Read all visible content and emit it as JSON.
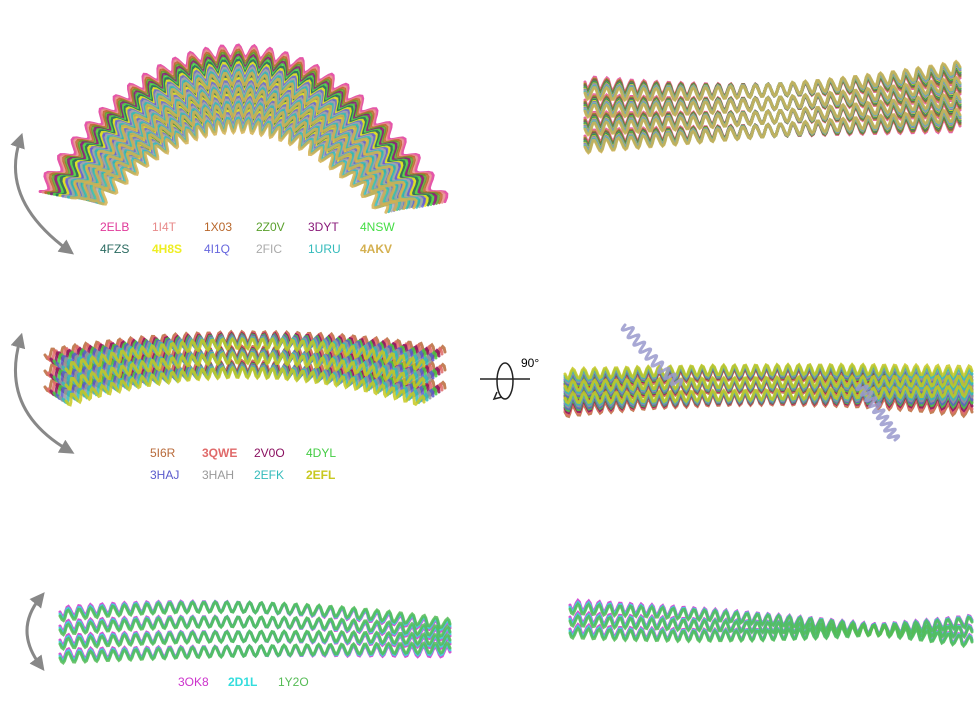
{
  "rotation_label": "90°",
  "panels": [
    {
      "labels": [
        {
          "text": "2ELB",
          "color": "#e0389a"
        },
        {
          "text": "1I4T",
          "color": "#e88a8a"
        },
        {
          "text": "1X03",
          "color": "#b8662a"
        },
        {
          "text": "2Z0V",
          "color": "#5aa02c"
        },
        {
          "text": "3DYT",
          "color": "#8a1a7a"
        },
        {
          "text": "4NSW",
          "color": "#44dd44"
        },
        {
          "text": "4FZS",
          "color": "#2a6a60"
        },
        {
          "text": "4H8S",
          "color": "#eeee22",
          "bold": true
        },
        {
          "text": "4I1Q",
          "color": "#6666dd"
        },
        {
          "text": "2FIC",
          "color": "#aaaaaa"
        },
        {
          "text": "1URU",
          "color": "#33bbbb"
        },
        {
          "text": "4AKV",
          "color": "#d4b050",
          "bold": true
        }
      ]
    },
    {
      "labels": [
        {
          "text": "5I6R",
          "color": "#b86a3a"
        },
        {
          "text": "3QWE",
          "color": "#e06a6a",
          "bold": true
        },
        {
          "text": "2V0O",
          "color": "#8a1060"
        },
        {
          "text": "4DYL",
          "color": "#44cc44"
        },
        {
          "text": "3HAJ",
          "color": "#5a5acc"
        },
        {
          "text": "3HAH",
          "color": "#999999"
        },
        {
          "text": "2EFK",
          "color": "#33bbbb"
        },
        {
          "text": "2EFL",
          "color": "#c8c820",
          "bold": true
        }
      ]
    },
    {
      "labels": [
        {
          "text": "3OK8",
          "color": "#cc33cc"
        },
        {
          "text": "2D1L",
          "color": "#33dddd",
          "bold": true
        },
        {
          "text": "1Y2O",
          "color": "#55bb55"
        }
      ]
    }
  ]
}
